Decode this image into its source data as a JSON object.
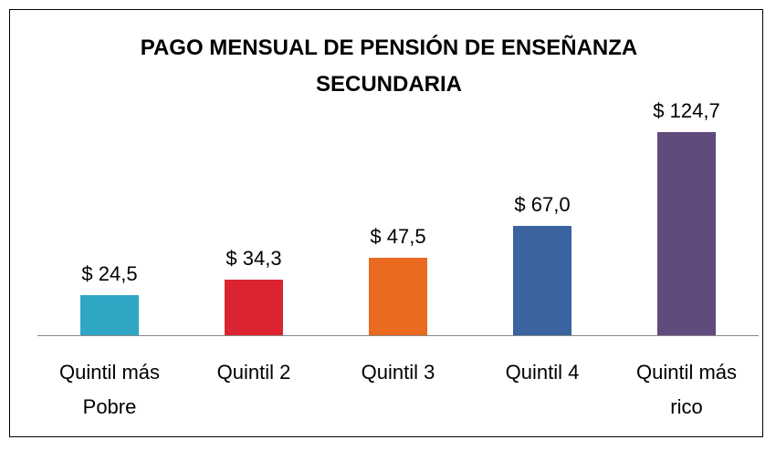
{
  "chart_data": {
    "type": "bar",
    "title": "PAGO MENSUAL DE PENSIÓN DE ENSEÑANZA SECUNDARIA",
    "categories": [
      "Quintil más Pobre",
      "Quintil 2",
      "Quintil 3",
      "Quintil 4",
      "Quintil más rico"
    ],
    "values": [
      24.5,
      34.3,
      47.5,
      67.0,
      124.7
    ],
    "value_labels": [
      "$ 24,5",
      "$ 34,3",
      "$ 47,5",
      "$ 67,0",
      "$ 124,7"
    ],
    "colors": [
      "#2ea6c4",
      "#dc2430",
      "#ea6a1f",
      "#3a63a0",
      "#614a7c"
    ]
  }
}
